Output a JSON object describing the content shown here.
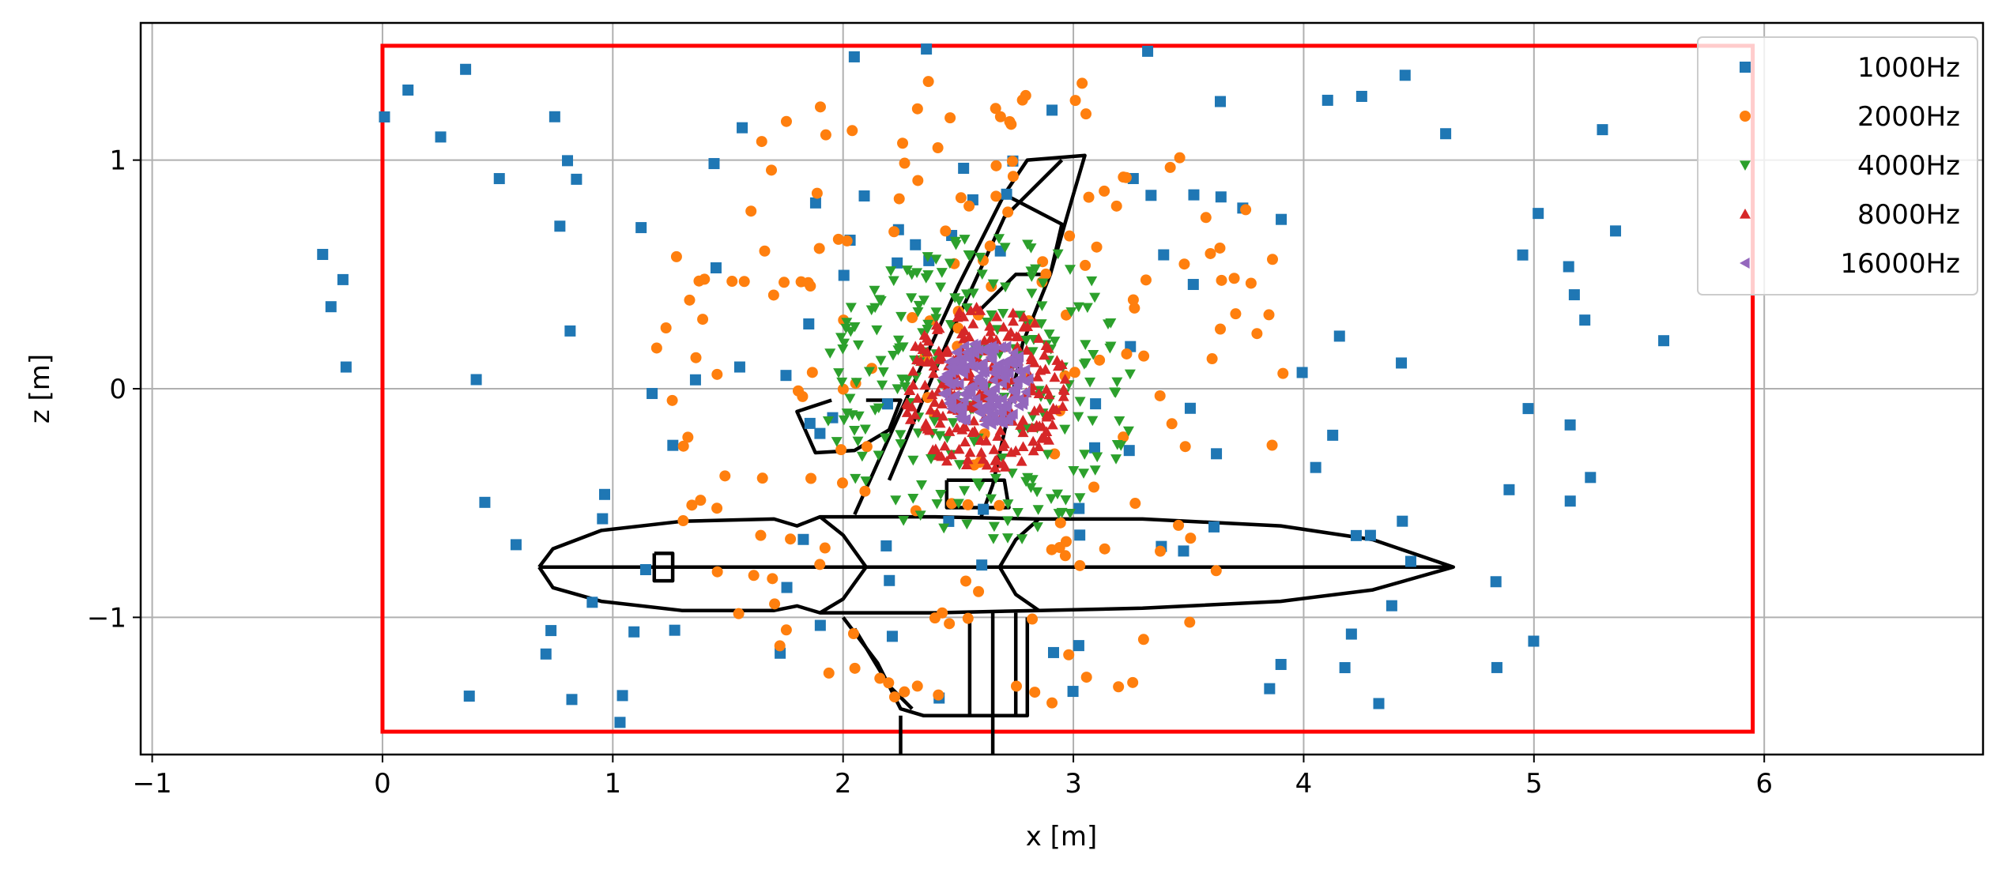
{
  "chart_data": {
    "type": "scatter",
    "title": "",
    "xlabel": "x [m]",
    "ylabel": "z [m]",
    "xlim": [
      -1.05,
      6.95
    ],
    "ylim": [
      -1.6,
      1.6
    ],
    "xticks": [
      -1,
      0,
      1,
      2,
      3,
      4,
      5,
      6
    ],
    "yticks": [
      -1,
      0,
      1
    ],
    "xtick_labels": [
      "−1",
      "0",
      "1",
      "2",
      "3",
      "4",
      "5",
      "6"
    ],
    "ytick_labels": [
      "−1",
      "0",
      "1"
    ],
    "grid": true,
    "legend": "top-right",
    "region_box": {
      "x": [
        0,
        5.95
      ],
      "z": [
        -1.5,
        1.5
      ],
      "color": "#ff0000"
    },
    "aircraft_outline": {
      "color": "#000000",
      "fuselage": [
        [
          0.68,
          -0.78
        ],
        [
          0.74,
          -0.7
        ],
        [
          0.95,
          -0.62
        ],
        [
          1.3,
          -0.58
        ],
        [
          1.7,
          -0.57
        ],
        [
          1.8,
          -0.6
        ],
        [
          1.9,
          -0.56
        ],
        [
          2.4,
          -0.56
        ],
        [
          2.85,
          -0.57
        ],
        [
          3.3,
          -0.57
        ],
        [
          3.9,
          -0.6
        ],
        [
          4.3,
          -0.66
        ],
        [
          4.65,
          -0.78
        ],
        [
          4.3,
          -0.88
        ],
        [
          3.9,
          -0.93
        ],
        [
          3.3,
          -0.96
        ],
        [
          2.85,
          -0.97
        ],
        [
          2.4,
          -0.98
        ],
        [
          1.9,
          -0.98
        ],
        [
          1.8,
          -0.95
        ],
        [
          1.7,
          -0.97
        ],
        [
          1.3,
          -0.97
        ],
        [
          0.95,
          -0.93
        ],
        [
          0.74,
          -0.87
        ],
        [
          0.68,
          -0.78
        ]
      ],
      "fuselage_waist": [
        [
          1.9,
          -0.56
        ],
        [
          2.0,
          -0.64
        ],
        [
          2.1,
          -0.78
        ],
        [
          2.0,
          -0.92
        ],
        [
          1.9,
          -0.98
        ]
      ],
      "fuselage_waist_right": [
        [
          2.85,
          -0.57
        ],
        [
          2.75,
          -0.66
        ],
        [
          2.68,
          -0.78
        ],
        [
          2.75,
          -0.9
        ],
        [
          2.85,
          -0.97
        ]
      ],
      "centerline": [
        [
          0.68,
          -0.78
        ],
        [
          4.65,
          -0.78
        ]
      ],
      "nose_marker": [
        [
          1.18,
          -0.72
        ],
        [
          1.26,
          -0.72
        ],
        [
          1.26,
          -0.84
        ],
        [
          1.18,
          -0.84
        ],
        [
          1.18,
          -0.72
        ]
      ],
      "fin": [
        [
          2.05,
          -0.55
        ],
        [
          2.25,
          -0.1
        ],
        [
          2.5,
          0.45
        ],
        [
          2.7,
          0.85
        ],
        [
          2.8,
          1.0
        ],
        [
          3.05,
          1.02
        ],
        [
          3.0,
          0.85
        ],
        [
          2.9,
          0.5
        ],
        [
          2.78,
          0.2
        ],
        [
          2.72,
          -0.1
        ],
        [
          2.65,
          -0.42
        ],
        [
          2.6,
          -0.56
        ]
      ],
      "fin_inner": [
        [
          2.2,
          -0.4
        ],
        [
          2.45,
          0.2
        ],
        [
          2.7,
          0.75
        ],
        [
          2.95,
          1.0
        ]
      ],
      "rudder": [
        [
          2.7,
          0.85
        ],
        [
          2.95,
          0.72
        ],
        [
          2.9,
          0.5
        ],
        [
          2.75,
          0.5
        ],
        [
          2.6,
          0.35
        ]
      ],
      "tailplane": [
        [
          1.95,
          -0.05
        ],
        [
          1.8,
          -0.1
        ],
        [
          1.88,
          -0.28
        ],
        [
          2.05,
          -0.27
        ],
        [
          2.2,
          -0.18
        ],
        [
          2.25,
          -0.05
        ],
        [
          2.1,
          -0.05
        ]
      ],
      "support_block": [
        [
          2.45,
          -0.4
        ],
        [
          2.7,
          -0.4
        ],
        [
          2.72,
          -0.52
        ],
        [
          2.45,
          -0.52
        ],
        [
          2.45,
          -0.4
        ]
      ],
      "lower_fin": [
        [
          2.0,
          -1.0
        ],
        [
          2.15,
          -1.2
        ],
        [
          2.25,
          -1.4
        ],
        [
          2.35,
          -1.43
        ],
        [
          2.8,
          -1.43
        ],
        [
          2.8,
          -1.0
        ]
      ],
      "lower_fin_inner": [
        [
          2.05,
          -1.05
        ],
        [
          2.2,
          -1.3
        ],
        [
          2.3,
          -1.4
        ]
      ],
      "strut_a": [
        [
          2.25,
          -1.43
        ],
        [
          2.25,
          -1.6
        ]
      ],
      "strut_b": [
        [
          2.65,
          -0.98
        ],
        [
          2.65,
          -1.6
        ]
      ],
      "strut_c": [
        [
          2.55,
          -0.98
        ],
        [
          2.55,
          -1.43
        ]
      ],
      "strut_d": [
        [
          2.75,
          -0.98
        ],
        [
          2.75,
          -1.43
        ]
      ]
    },
    "series": [
      {
        "name": "1000Hz",
        "color": "#1f77b4",
        "marker": "square",
        "count": 130,
        "center": [
          2.6,
          0.0
        ],
        "radius": 3.0,
        "seed": 11
      },
      {
        "name": "2000Hz",
        "color": "#ff7f0e",
        "marker": "circle",
        "count": 190,
        "center": [
          2.6,
          0.0
        ],
        "radius": 1.45,
        "seed": 23
      },
      {
        "name": "4000Hz",
        "color": "#2ca02c",
        "marker": "triangle-down",
        "count": 240,
        "center": [
          2.6,
          0.0
        ],
        "radius": 0.68,
        "seed": 37
      },
      {
        "name": "8000Hz",
        "color": "#d62728",
        "marker": "triangle-up",
        "count": 230,
        "center": [
          2.62,
          0.0
        ],
        "radius": 0.36,
        "seed": 41
      },
      {
        "name": "16000Hz",
        "color": "#9467bd",
        "marker": "triangle-left",
        "count": 200,
        "center": [
          2.62,
          0.02
        ],
        "radius": 0.19,
        "seed": 53
      }
    ]
  }
}
